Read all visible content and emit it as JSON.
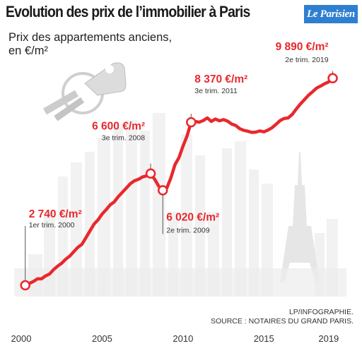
{
  "header": {
    "title": "Evolution des prix de l’immobilier à Paris",
    "logo_text": "Le Parisien",
    "subtitle_line1": "Prix des appartements anciens,",
    "subtitle_line2": "en €/m²"
  },
  "source": {
    "line1": "LP/INFOGRAPHIE.",
    "line2": "SOURCE : NOTAIRES DU GRAND PARIS."
  },
  "colors": {
    "series": "#e8282d",
    "logo_bg": "#2f7fd0",
    "skyline": "#f1f1f1"
  },
  "chart_data": {
    "type": "line",
    "title": "Evolution des prix de l’immobilier à Paris",
    "ylabel": "Prix des appartements anciens, en €/m²",
    "xlabel": "",
    "xlim": [
      2000,
      2019.75
    ],
    "ylim": [
      2300,
      10300
    ],
    "x_ticks": [
      "2000",
      "2005",
      "2010",
      "2015",
      "2019"
    ],
    "x_tick_values": [
      2000,
      2005,
      2010,
      2015,
      2019
    ],
    "grid": false,
    "series": [
      {
        "x": [
          2000.25,
          2000.5,
          2000.75,
          2001.0,
          2001.25,
          2001.5,
          2001.75,
          2002.0,
          2002.25,
          2002.5,
          2002.75,
          2003.0,
          2003.25,
          2003.5,
          2003.75,
          2004.0,
          2004.25,
          2004.5,
          2004.75,
          2005.0,
          2005.25,
          2005.5,
          2005.75,
          2006.0,
          2006.25,
          2006.5,
          2006.75,
          2007.0,
          2007.25,
          2007.5,
          2007.75,
          2008.0,
          2008.25,
          2008.5,
          2008.75,
          2009.0,
          2009.25,
          2009.5,
          2009.75,
          2010.0,
          2010.25,
          2010.5,
          2010.75,
          2011.0,
          2011.25,
          2011.5,
          2011.75,
          2012.0,
          2012.25,
          2012.5,
          2012.75,
          2013.0,
          2013.25,
          2013.5,
          2013.75,
          2014.0,
          2014.25,
          2014.5,
          2014.75,
          2015.0,
          2015.25,
          2015.5,
          2015.75,
          2016.0,
          2016.25,
          2016.5,
          2016.75,
          2017.0,
          2017.25,
          2017.5,
          2017.75,
          2018.0,
          2018.25,
          2018.5,
          2018.75,
          2019.0,
          2019.25
        ],
        "values": [
          2740,
          2800,
          2870,
          2960,
          2960,
          3060,
          3130,
          3280,
          3400,
          3500,
          3640,
          3750,
          3900,
          4050,
          4150,
          4380,
          4620,
          4850,
          5000,
          5200,
          5350,
          5520,
          5620,
          5800,
          5950,
          6100,
          6250,
          6350,
          6400,
          6480,
          6520,
          6600,
          6400,
          6160,
          6020,
          6100,
          6450,
          6900,
          7150,
          7550,
          7900,
          8370,
          8400,
          8370,
          8430,
          8520,
          8400,
          8480,
          8420,
          8460,
          8410,
          8310,
          8260,
          8150,
          8090,
          8060,
          8020,
          8030,
          8070,
          8040,
          8100,
          8180,
          8300,
          8430,
          8500,
          8520,
          8640,
          8830,
          9000,
          9150,
          9300,
          9420,
          9550,
          9620,
          9700,
          9760,
          9890
        ]
      }
    ],
    "annotations": [
      {
        "x": 2000.25,
        "y": 2740,
        "value": "2 740 €/m²",
        "date": "1er trim. 2000"
      },
      {
        "x": 2008.0,
        "y": 6600,
        "value": "6 600 €/m²",
        "date": "3e trim. 2008"
      },
      {
        "x": 2008.75,
        "y": 6020,
        "value": "6 020 €/m²",
        "date": "2e trim. 2009"
      },
      {
        "x": 2010.5,
        "y": 8370,
        "value": "8 370 €/m²",
        "date": "3e trim. 2011"
      },
      {
        "x": 2019.25,
        "y": 9890,
        "value": "9 890 €/m²",
        "date": "2e trim. 2019"
      }
    ]
  }
}
